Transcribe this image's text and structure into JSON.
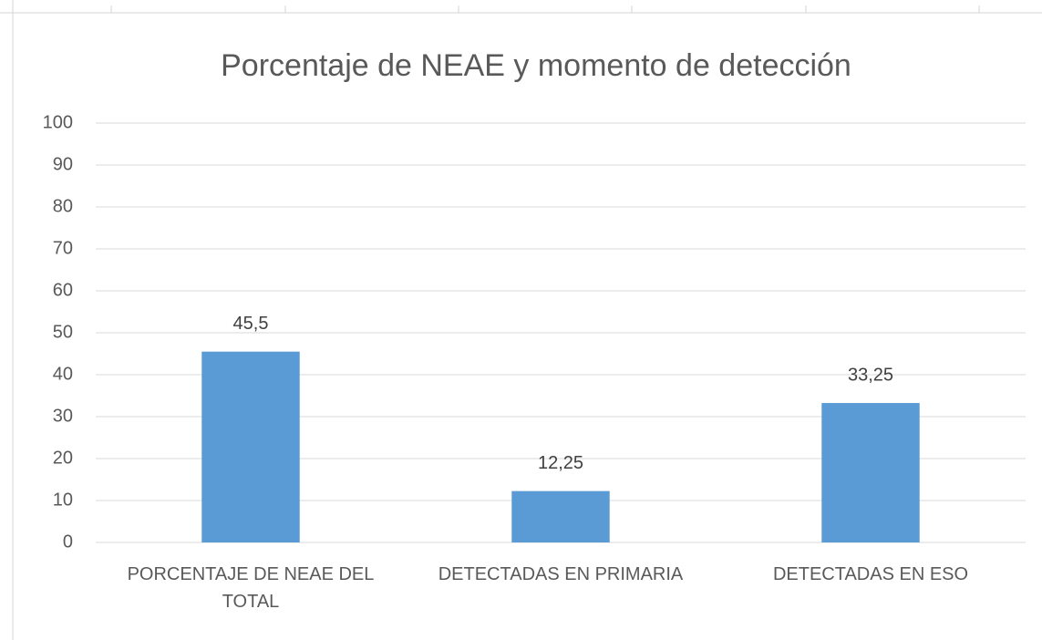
{
  "chart_data": {
    "type": "bar",
    "title": "Porcentaje de NEAE y momento de detección",
    "categories": [
      "PORCENTAJE DE NEAE DEL TOTAL",
      "DETECTADAS EN PRIMARIA",
      "DETECTADAS EN ESO"
    ],
    "values": [
      45.5,
      12.25,
      33.25
    ],
    "value_labels": [
      "45,5",
      "12,25",
      "33,25"
    ],
    "color": "#5b9bd5",
    "ylim": [
      0,
      100
    ],
    "yticks": [
      0,
      10,
      20,
      30,
      40,
      50,
      60,
      70,
      80,
      90,
      100
    ],
    "grid": true
  }
}
